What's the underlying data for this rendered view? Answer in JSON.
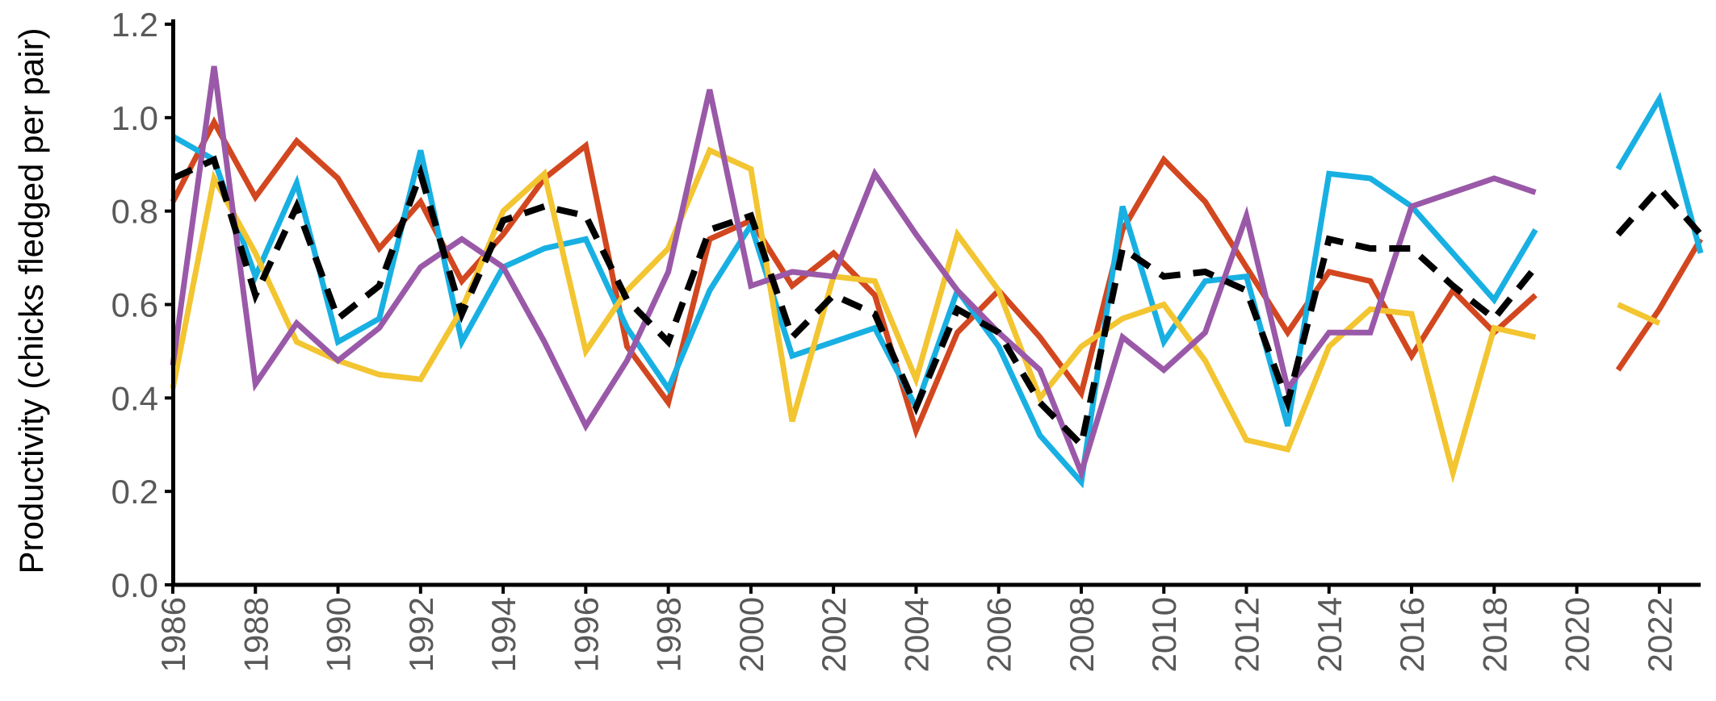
{
  "chart_data": {
    "type": "line",
    "title": "",
    "xlabel": "",
    "ylabel": "Productivity (chicks fledged per pair)",
    "xlim": [
      1986,
      2023
    ],
    "ylim": [
      0,
      1.2
    ],
    "y_ticks": [
      "0.0",
      "0.2",
      "0.4",
      "0.6",
      "0.8",
      "1.0",
      "1.2"
    ],
    "x_ticks": [
      "1986",
      "1988",
      "1990",
      "1992",
      "1994",
      "1996",
      "1998",
      "2000",
      "2002",
      "2004",
      "2006",
      "2008",
      "2010",
      "2012",
      "2014",
      "2016",
      "2018",
      "2020",
      "2022"
    ],
    "grid": false,
    "legend": "none",
    "x": [
      1986,
      1987,
      1988,
      1989,
      1990,
      1991,
      1992,
      1993,
      1994,
      1995,
      1996,
      1997,
      1998,
      1999,
      2000,
      2001,
      2002,
      2003,
      2004,
      2005,
      2006,
      2007,
      2008,
      2009,
      2010,
      2011,
      2012,
      2013,
      2014,
      2015,
      2016,
      2017,
      2018,
      2019,
      2020,
      2021,
      2022,
      2023
    ],
    "series": [
      {
        "color": "#d2471f",
        "dashed": false,
        "values": [
          0.82,
          0.99,
          0.83,
          0.95,
          0.87,
          0.72,
          0.82,
          0.65,
          0.75,
          0.87,
          0.94,
          0.51,
          0.39,
          0.74,
          0.78,
          0.64,
          0.71,
          0.62,
          0.33,
          0.54,
          0.63,
          0.53,
          0.41,
          0.76,
          0.91,
          0.82,
          0.68,
          0.54,
          0.67,
          0.65,
          0.49,
          0.63,
          0.54,
          0.62,
          null,
          0.46,
          0.59,
          0.74
        ]
      },
      {
        "color": "#18b0e2",
        "dashed": false,
        "values": [
          0.96,
          0.91,
          0.66,
          0.86,
          0.52,
          0.57,
          0.93,
          0.52,
          0.68,
          0.72,
          0.74,
          0.55,
          0.42,
          0.63,
          0.77,
          0.49,
          0.52,
          0.55,
          0.38,
          0.63,
          0.51,
          0.32,
          0.22,
          0.81,
          0.52,
          0.65,
          0.66,
          0.34,
          0.88,
          0.87,
          0.81,
          0.71,
          0.61,
          0.76,
          null,
          0.89,
          1.04,
          0.71
        ]
      },
      {
        "color": "#f2c531",
        "dashed": false,
        "values": [
          0.42,
          0.87,
          0.71,
          0.52,
          0.48,
          0.45,
          0.44,
          0.59,
          0.8,
          0.88,
          0.5,
          0.63,
          0.72,
          0.93,
          0.89,
          0.35,
          0.66,
          0.65,
          0.44,
          0.75,
          0.63,
          0.4,
          0.51,
          0.57,
          0.6,
          0.48,
          0.31,
          0.29,
          0.51,
          0.59,
          0.58,
          0.24,
          0.55,
          0.53,
          null,
          0.6,
          0.56,
          null
        ]
      },
      {
        "color": "#9a59a8",
        "dashed": false,
        "values": [
          0.47,
          1.11,
          0.43,
          0.56,
          0.48,
          0.55,
          0.68,
          0.74,
          0.68,
          0.52,
          0.34,
          0.48,
          0.67,
          1.06,
          0.64,
          0.67,
          0.66,
          0.88,
          0.75,
          0.63,
          0.54,
          0.46,
          0.24,
          0.53,
          0.46,
          0.54,
          0.79,
          0.42,
          0.54,
          0.54,
          0.81,
          0.84,
          0.87,
          0.84,
          null,
          null,
          null,
          null
        ]
      },
      {
        "color": "#000000",
        "dashed": true,
        "values": [
          0.87,
          0.91,
          0.62,
          0.81,
          0.57,
          0.64,
          0.88,
          0.58,
          0.78,
          0.81,
          0.79,
          0.61,
          0.52,
          0.76,
          0.79,
          0.53,
          0.62,
          0.58,
          0.38,
          0.59,
          0.54,
          0.39,
          0.3,
          0.72,
          0.66,
          0.67,
          0.63,
          0.39,
          0.74,
          0.72,
          0.72,
          0.64,
          0.57,
          0.68,
          null,
          0.75,
          0.85,
          0.75
        ]
      }
    ]
  }
}
